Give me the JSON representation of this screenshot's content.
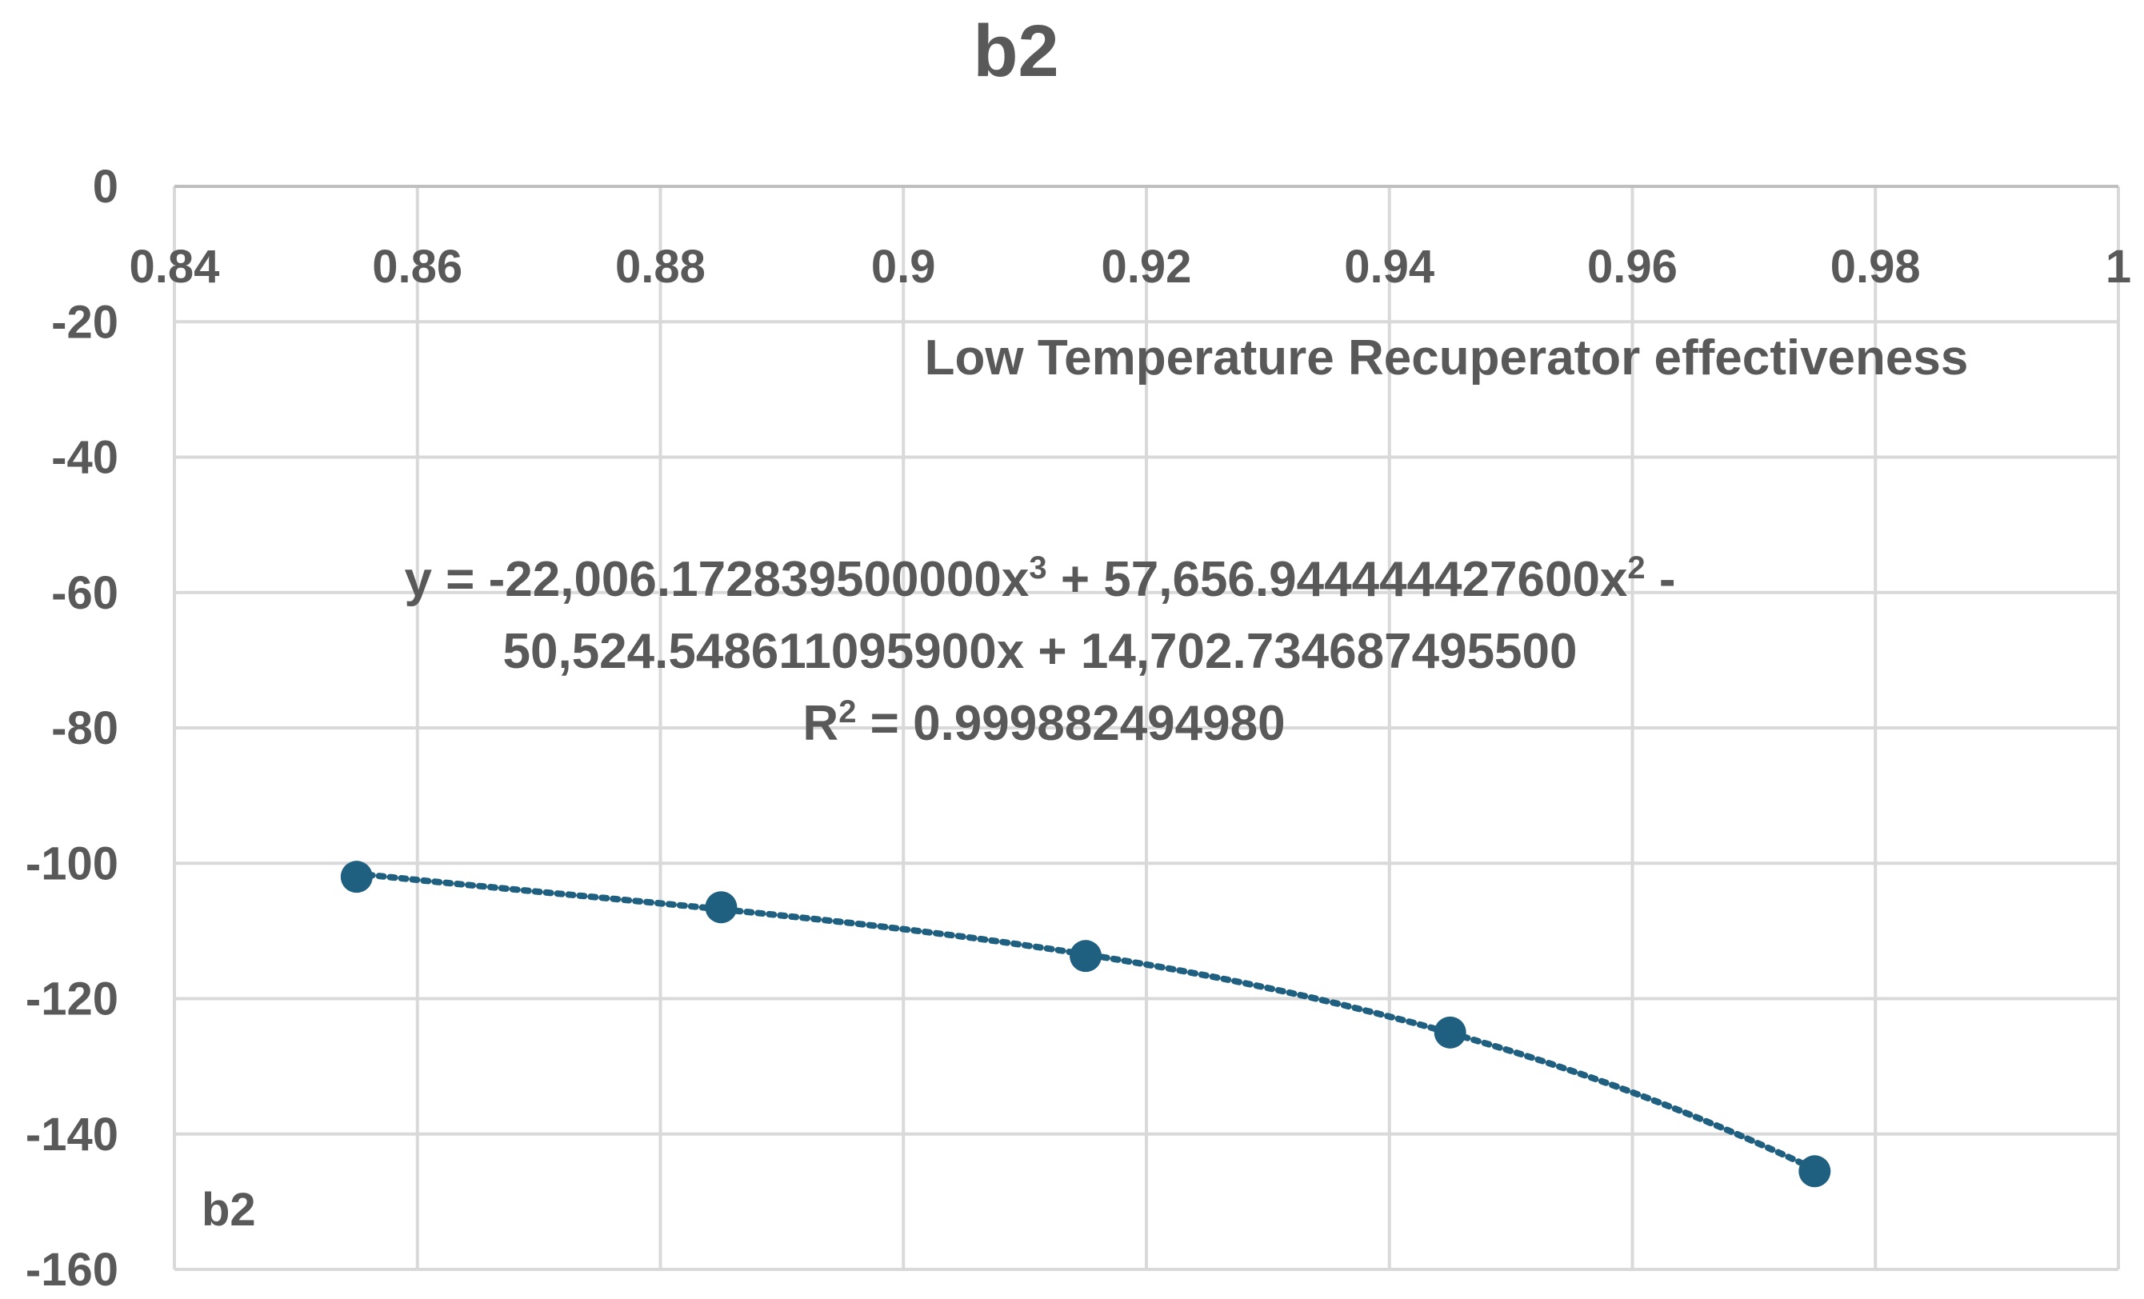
{
  "chart_data": {
    "type": "scatter",
    "title": "b2",
    "xlabel": "Low Temperature Recuperator effectiveness",
    "ylabel": "",
    "xlim": [
      0.84,
      1.0
    ],
    "ylim": [
      -160,
      0
    ],
    "x_ticks": [
      "0.84",
      "0.86",
      "0.88",
      "0.9",
      "0.92",
      "0.94",
      "0.96",
      "0.98",
      "1"
    ],
    "x_tick_values": [
      0.84,
      0.86,
      0.88,
      0.9,
      0.92,
      0.94,
      0.96,
      0.98,
      1.0
    ],
    "y_ticks": [
      "0",
      "-20",
      "-40",
      "-60",
      "-80",
      "-100",
      "-120",
      "-140",
      "-160"
    ],
    "y_tick_values": [
      0,
      -20,
      -40,
      -60,
      -80,
      -100,
      -120,
      -140,
      -160
    ],
    "grid": true,
    "x_axis_position": "top",
    "series": [
      {
        "name": "b2",
        "x": [
          0.855,
          0.885,
          0.915,
          0.945,
          0.975
        ],
        "y": [
          -102,
          -106.5,
          -113.7,
          -125,
          -145.5
        ],
        "color": "#1F5F7F",
        "trendline": "polynomial-3-dotted"
      }
    ],
    "trendline_equation": {
      "line1_prefix": "y = -22,006.172839500000x",
      "line1_sup1": "3",
      "line1_mid": " + 57,656.944444427600x",
      "line1_sup2": "2",
      "line1_suffix": " -",
      "line2": "50,524.548611095900x + 14,702.734687495500",
      "line3_prefix": "R",
      "line3_sup": "2",
      "line3_suffix": " = 0.999882494980",
      "coefficients": [
        -22006.1728395,
        57656.9444444276,
        -50524.5486110959,
        14702.7346874955
      ],
      "r_squared": 0.99988249498
    },
    "legend": "bottom-left"
  }
}
